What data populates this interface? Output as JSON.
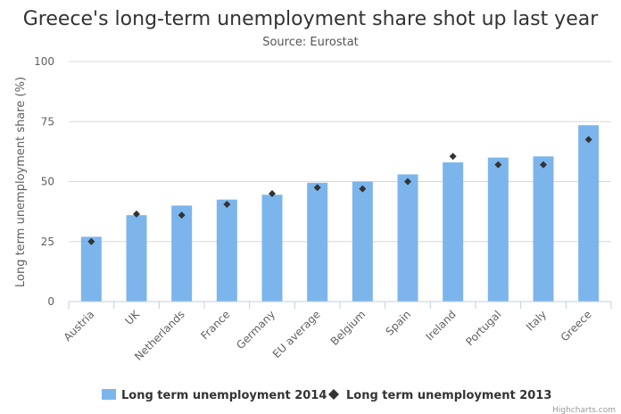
{
  "chart_data": {
    "type": "bar",
    "title": "Greece's long-term unemployment share shot up last year",
    "subtitle": "Source: Eurostat",
    "xlabel": "",
    "ylabel": "Long term unemployment share (%)",
    "ylim": [
      0,
      100
    ],
    "yticks": [
      "0",
      "25",
      "50",
      "75",
      "100"
    ],
    "grid": true,
    "legend_position": "bottom",
    "categories": [
      "Austria",
      "UK",
      "Netherlands",
      "France",
      "Germany",
      "EU average",
      "Belgium",
      "Spain",
      "Ireland",
      "Portugal",
      "Italy",
      "Greece"
    ],
    "series": [
      {
        "name": "Long term unemployment 2014",
        "type": "bar",
        "color": "#7cb5ec",
        "values": [
          27,
          36,
          40,
          42.5,
          44.5,
          49.5,
          50,
          53,
          58,
          60,
          60.5,
          73.5
        ]
      },
      {
        "name": "Long term unemployment 2013",
        "type": "scatter",
        "marker": "diamond",
        "color": "#333333",
        "values": [
          25,
          36.5,
          36,
          40.5,
          45,
          47.5,
          47,
          50,
          60.5,
          57,
          57,
          67.5
        ]
      }
    ],
    "credits": "Highcharts.com"
  }
}
